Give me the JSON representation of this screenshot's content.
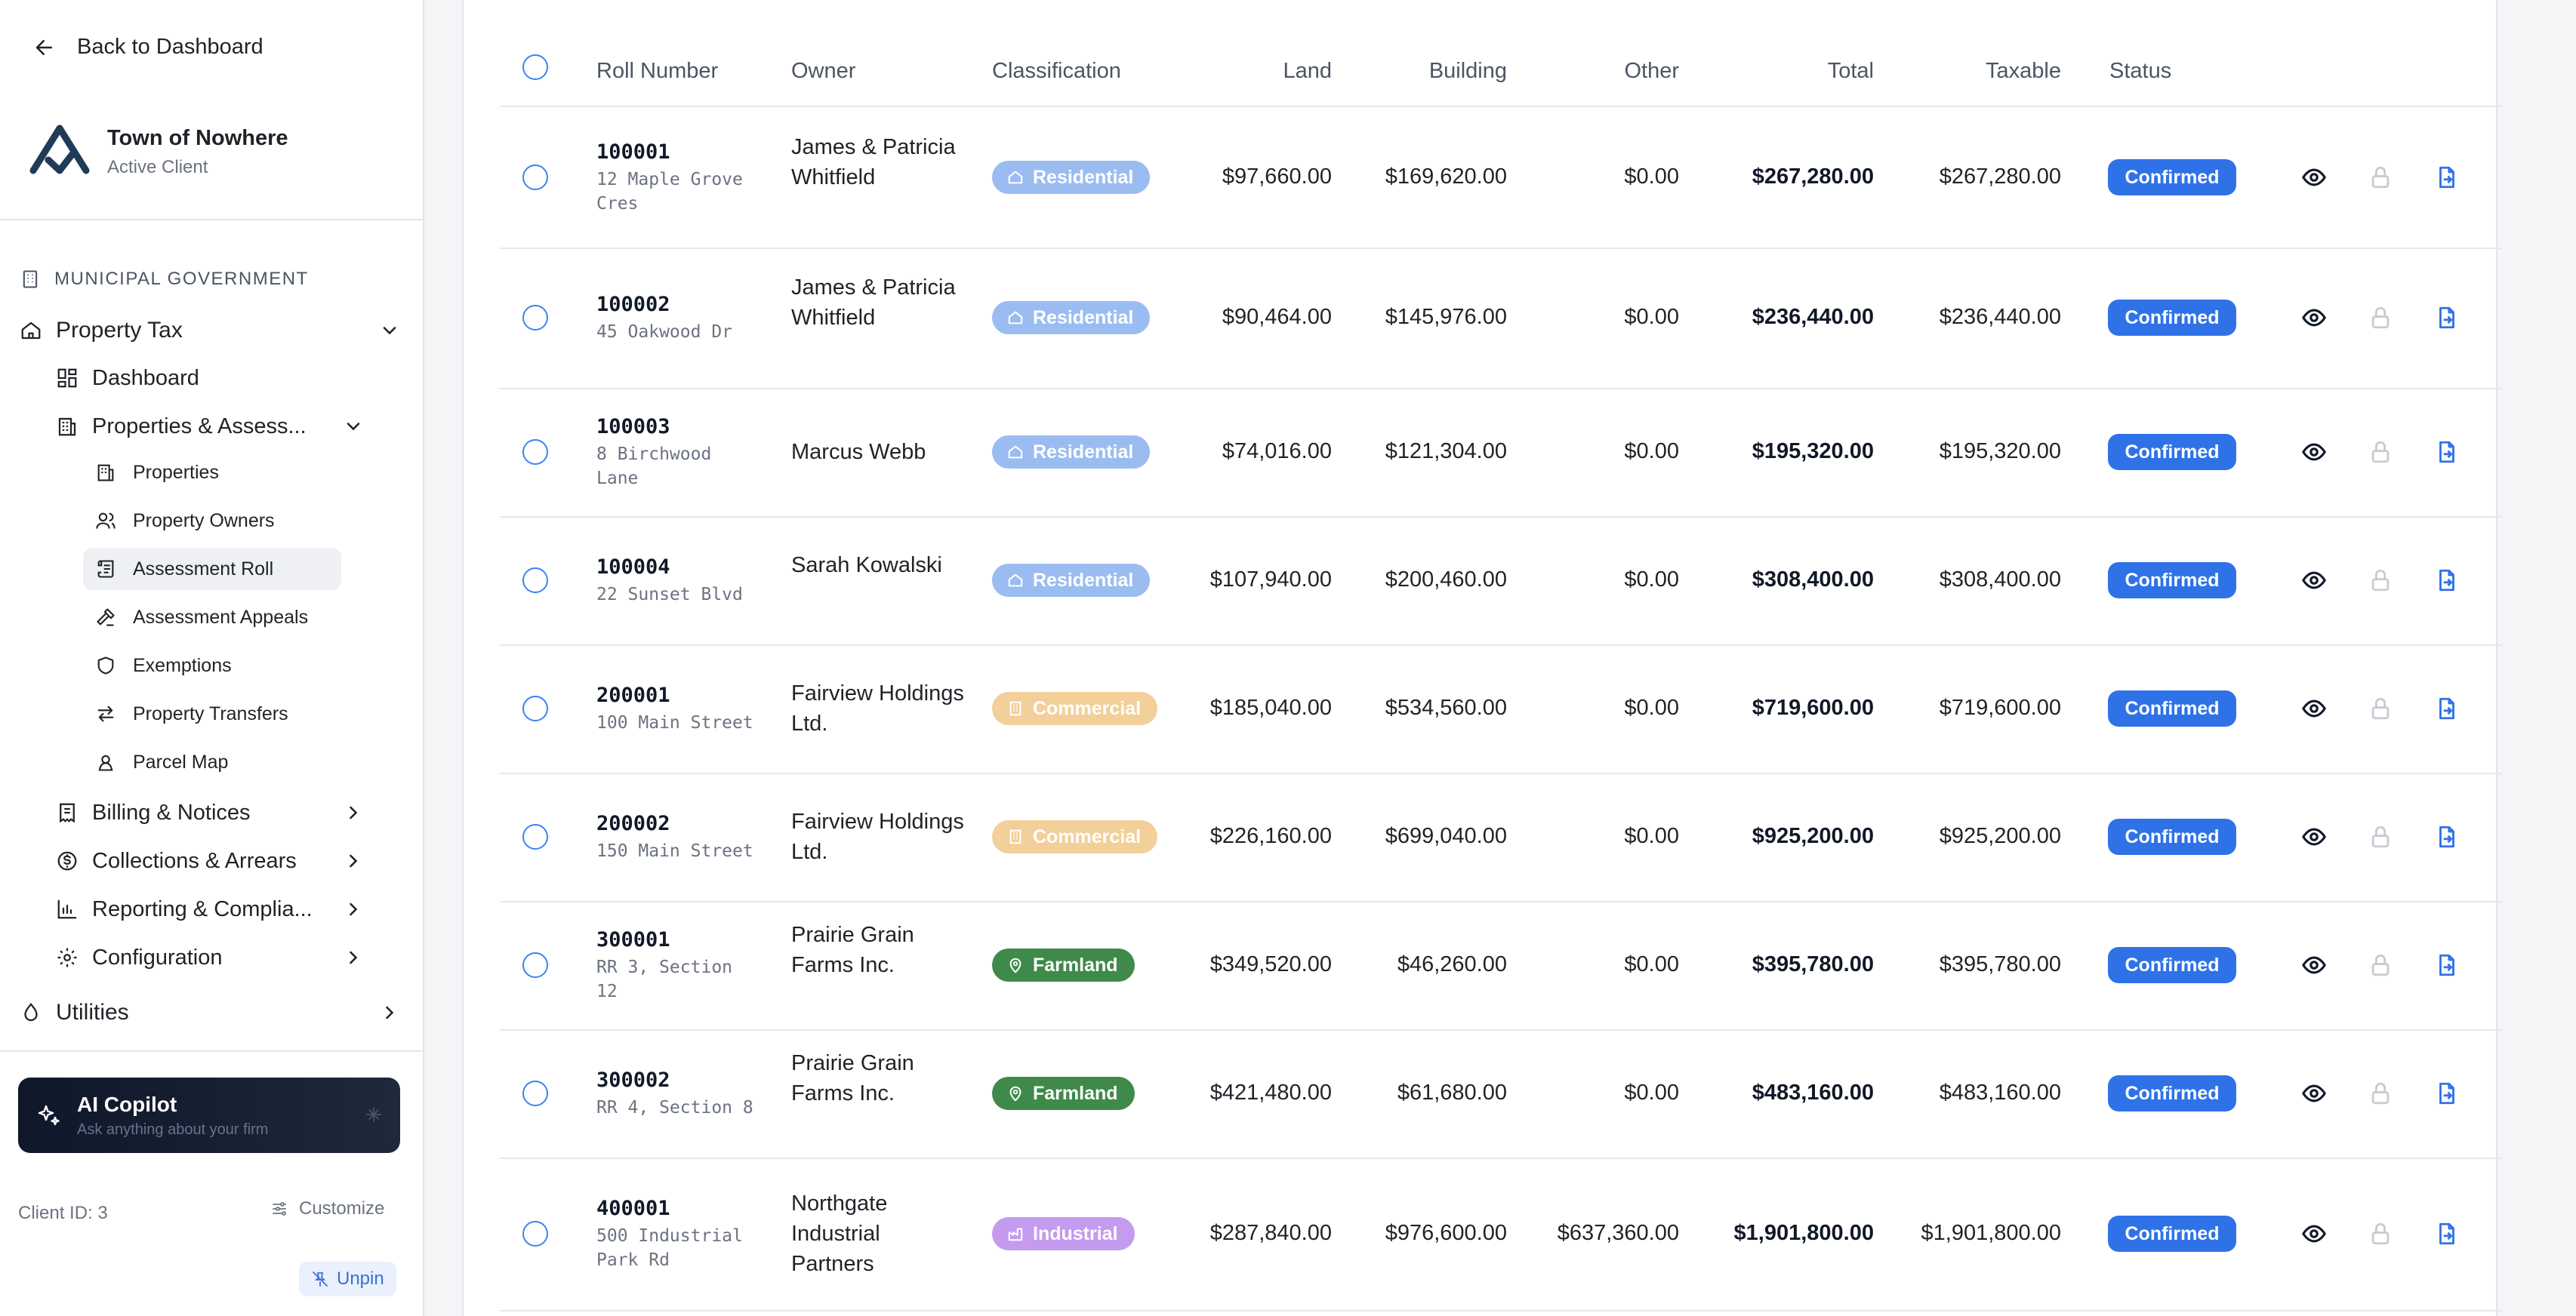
{
  "sidebar": {
    "back_label": "Back to Dashboard",
    "client_name": "Town of Nowhere",
    "client_status": "Active Client",
    "section_label": "MUNICIPAL GOVERNMENT",
    "property_tax": "Property Tax",
    "dashboard": "Dashboard",
    "properties_assess": "Properties & Assess...",
    "sub_items": [
      {
        "label": "Properties",
        "icon": "building-icon"
      },
      {
        "label": "Property Owners",
        "icon": "users-icon"
      },
      {
        "label": "Assessment Roll",
        "icon": "roll-icon"
      },
      {
        "label": "Assessment Appeals",
        "icon": "gavel-icon"
      },
      {
        "label": "Exemptions",
        "icon": "shield-icon"
      },
      {
        "label": "Property Transfers",
        "icon": "transfer-icon"
      },
      {
        "label": "Parcel Map",
        "icon": "map-pin-icon"
      }
    ],
    "groups": [
      {
        "label": "Billing & Notices",
        "icon": "receipt-icon"
      },
      {
        "label": "Collections & Arrears",
        "icon": "dollar-icon"
      },
      {
        "label": "Reporting & Complia...",
        "icon": "chart-icon"
      },
      {
        "label": "Configuration",
        "icon": "gear-icon"
      }
    ],
    "utilities": "Utilities",
    "copilot_title": "AI Copilot",
    "copilot_sub": "Ask anything about your firm",
    "client_id": "Client ID: 3",
    "customize": "Customize",
    "unpin": "Unpin"
  },
  "table": {
    "columns": [
      "Roll Number",
      "Owner",
      "Classification",
      "Land",
      "Building",
      "Other",
      "Total",
      "Taxable",
      "Status"
    ],
    "rows": [
      {
        "roll": "100001",
        "addr": "12 Maple Grove Cres",
        "owner": "James & Patricia Whitfield",
        "cls": "Residential",
        "land": "$97,660.00",
        "building": "$169,620.00",
        "other": "$0.00",
        "total": "$267,280.00",
        "taxable": "$267,280.00",
        "status": "Confirmed"
      },
      {
        "roll": "100002",
        "addr": "45 Oakwood Dr",
        "owner": "James & Patricia Whitfield",
        "cls": "Residential",
        "land": "$90,464.00",
        "building": "$145,976.00",
        "other": "$0.00",
        "total": "$236,440.00",
        "taxable": "$236,440.00",
        "status": "Confirmed"
      },
      {
        "roll": "100003",
        "addr": "8 Birchwood Lane",
        "owner": "Marcus Webb",
        "cls": "Residential",
        "land": "$74,016.00",
        "building": "$121,304.00",
        "other": "$0.00",
        "total": "$195,320.00",
        "taxable": "$195,320.00",
        "status": "Confirmed"
      },
      {
        "roll": "100004",
        "addr": "22 Sunset Blvd",
        "owner": "Sarah Kowalski",
        "cls": "Residential",
        "land": "$107,940.00",
        "building": "$200,460.00",
        "other": "$0.00",
        "total": "$308,400.00",
        "taxable": "$308,400.00",
        "status": "Confirmed"
      },
      {
        "roll": "200001",
        "addr": "100 Main Street",
        "owner": "Fairview Holdings Ltd.",
        "cls": "Commercial",
        "land": "$185,040.00",
        "building": "$534,560.00",
        "other": "$0.00",
        "total": "$719,600.00",
        "taxable": "$719,600.00",
        "status": "Confirmed"
      },
      {
        "roll": "200002",
        "addr": "150 Main Street",
        "owner": "Fairview Holdings Ltd.",
        "cls": "Commercial",
        "land": "$226,160.00",
        "building": "$699,040.00",
        "other": "$0.00",
        "total": "$925,200.00",
        "taxable": "$925,200.00",
        "status": "Confirmed"
      },
      {
        "roll": "300001",
        "addr": "RR 3, Section 12",
        "owner": "Prairie Grain Farms Inc.",
        "cls": "Farmland",
        "land": "$349,520.00",
        "building": "$46,260.00",
        "other": "$0.00",
        "total": "$395,780.00",
        "taxable": "$395,780.00",
        "status": "Confirmed"
      },
      {
        "roll": "300002",
        "addr": "RR 4, Section 8",
        "owner": "Prairie Grain Farms Inc.",
        "cls": "Farmland",
        "land": "$421,480.00",
        "building": "$61,680.00",
        "other": "$0.00",
        "total": "$483,160.00",
        "taxable": "$483,160.00",
        "status": "Confirmed"
      },
      {
        "roll": "400001",
        "addr": "500 Industrial Park Rd",
        "owner": "Northgate Industrial Partners",
        "cls": "Industrial",
        "land": "$287,840.00",
        "building": "$976,600.00",
        "other": "$637,360.00",
        "total": "$1,901,800.00",
        "taxable": "$1,901,800.00",
        "status": "Confirmed"
      }
    ]
  },
  "colors": {
    "Residential": "#9bbcf1",
    "Commercial": "#f3cf99",
    "Farmland": "#3f8a4a",
    "Industrial": "#c49bef",
    "status": "#2f72e8",
    "accent": "#3b82f6"
  }
}
